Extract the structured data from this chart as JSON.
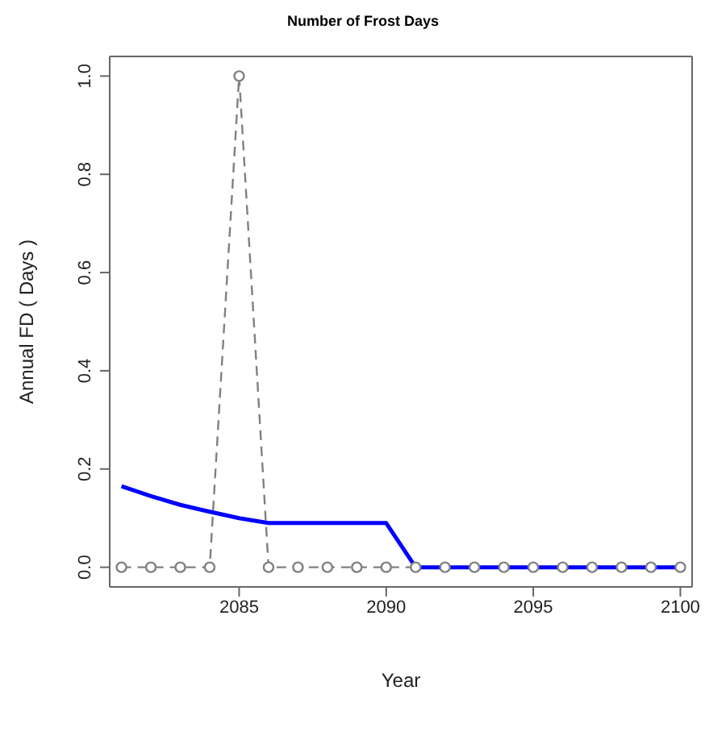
{
  "chart_data": {
    "type": "line",
    "title": "Number of Frost Days",
    "xlabel": "Year",
    "ylabel": "Annual  FD  ( Days )",
    "x": [
      2081,
      2082,
      2083,
      2084,
      2085,
      2086,
      2087,
      2088,
      2089,
      2090,
      2091,
      2092,
      2093,
      2094,
      2095,
      2096,
      2097,
      2098,
      2099,
      2100
    ],
    "series": [
      {
        "color": "#808080",
        "marker": "circle",
        "line_style": "dashed",
        "values": [
          0,
          0,
          0,
          0,
          1,
          0,
          0,
          0,
          0,
          0,
          0,
          0,
          0,
          0,
          0,
          0,
          0,
          0,
          0,
          0
        ]
      },
      {
        "color": "#0000ff",
        "marker": "none",
        "line_style": "solid",
        "values": [
          0.165,
          0.145,
          0.127,
          0.113,
          0.1,
          0.09,
          0.09,
          0.09,
          0.09,
          0.09,
          0,
          0,
          0,
          0,
          0,
          0,
          0,
          0,
          0,
          0
        ]
      }
    ],
    "xlim": [
      2080.6,
      2100.4
    ],
    "xticks": [
      2085,
      2090,
      2095,
      2100
    ],
    "ylim": [
      -0.04,
      1.04
    ],
    "yticks": [
      {
        "value": 0,
        "label": "0.0"
      },
      0.2,
      0.4,
      0.6,
      0.8,
      {
        "value": 1,
        "label": "1.0"
      }
    ],
    "grid": false,
    "legend": false
  }
}
